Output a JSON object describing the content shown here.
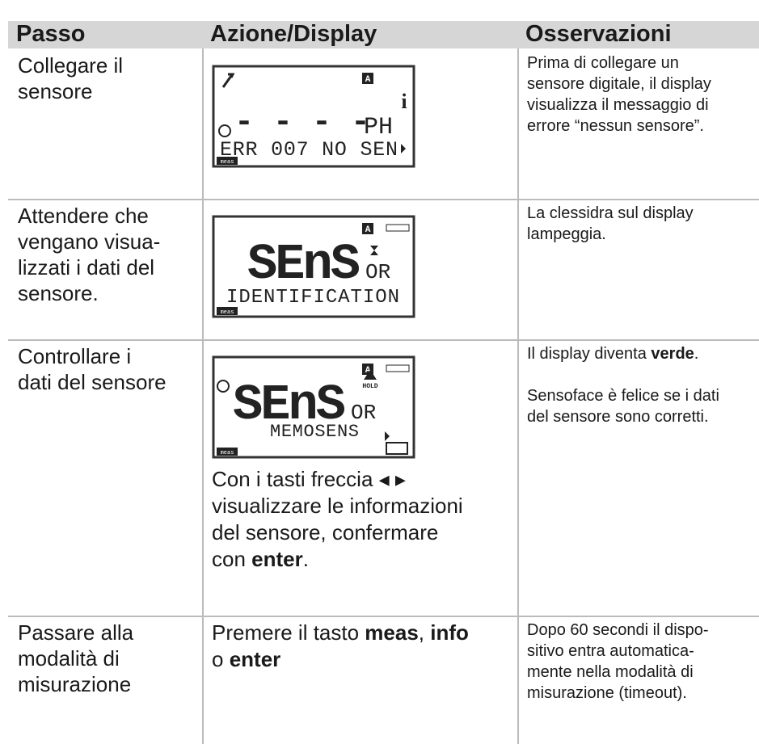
{
  "table": {
    "header": [
      "Passo",
      "Azione/Display",
      "Osservazioni"
    ],
    "rows": [
      {
        "step": [
          "Collegare il",
          "sensore"
        ],
        "display": {
          "badge": "A",
          "info": "i",
          "big": "- - - -",
          "small": "PH",
          "line2": "ERR 007 NO SEN",
          "mode": "meas"
        },
        "action": [],
        "notes": [
          [
            "Prima di collegare un"
          ],
          [
            "sensore digitale, il display"
          ],
          [
            "visualizza il messaggio di"
          ],
          [
            "errore “nessun sensore”."
          ]
        ]
      },
      {
        "step": [
          "Attendere che",
          "vengano visua-",
          "lizzati i dati del",
          "sensore."
        ],
        "display": {
          "badge": "A",
          "big": "SEnS",
          "small": "OR",
          "line2": "IDENTIFICATION",
          "mode": "meas"
        },
        "action": [],
        "notes": [
          [
            "La clessidra sul display"
          ],
          [
            "lampeggia."
          ]
        ]
      },
      {
        "step": [
          "Controllare i",
          "dati del sensore"
        ],
        "display": {
          "badge": "A",
          "big": "SEnS",
          "small": "OR",
          "hold": "HOLD",
          "line2": "MEMOSENS",
          "mode": "meas"
        },
        "action": [
          [
            "Con i tasti freccia ◂ ▸"
          ],
          [
            "visualizzare le informazioni"
          ],
          [
            "del sensore, confermare"
          ],
          [
            "con ",
            {
              "b": "enter"
            },
            "."
          ]
        ],
        "notes": [
          [
            "Il display diventa ",
            {
              "b": "verde"
            },
            "."
          ],
          [],
          [
            "Sensoface è felice se i dati"
          ],
          [
            "del sensore sono corretti."
          ]
        ]
      },
      {
        "step": [
          "Passare alla",
          "modalità di",
          "misurazione"
        ],
        "action": [
          [
            "Premere il tasto ",
            {
              "b": "meas"
            },
            ", ",
            {
              "b": "info"
            }
          ],
          [
            "o ",
            {
              "b": "enter"
            }
          ]
        ],
        "notes": [
          [
            "Dopo 60 secondi il dispo-"
          ],
          [
            "sitivo entra automatica-"
          ],
          [
            "mente nella modalità di"
          ],
          [
            "misurazione (timeout)."
          ]
        ]
      }
    ]
  }
}
